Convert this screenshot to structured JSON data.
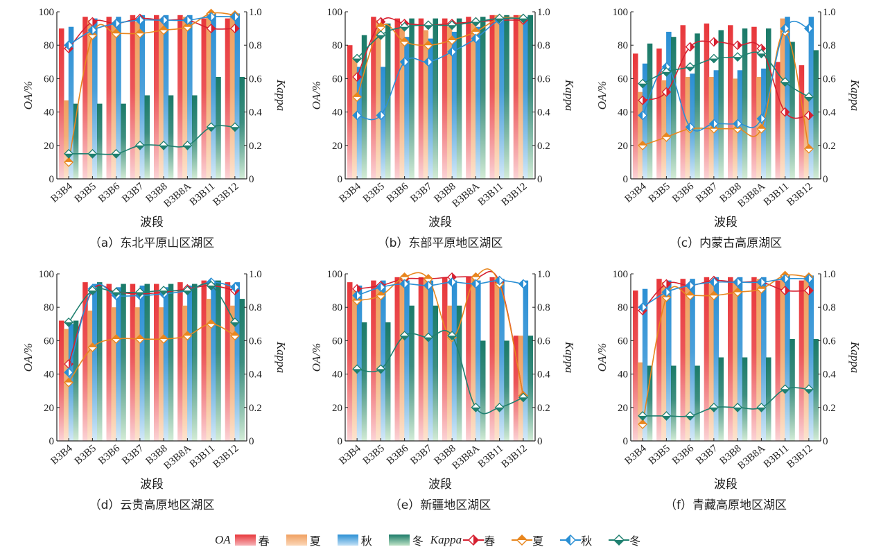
{
  "legend": {
    "oa_label": "OA",
    "kappa_label": "Kappa",
    "seasons": [
      "春",
      "夏",
      "秋",
      "冬"
    ]
  },
  "colors": {
    "spring": "#e8373b",
    "summer": "#f0a060",
    "autumn": "#2a8fd4",
    "winter": "#1a7a68",
    "spring_line": "#d62030",
    "summer_line": "#e8861e",
    "autumn_line": "#2a8fd4",
    "winter_line": "#1f8070"
  },
  "chart_data": [
    {
      "id": "a",
      "title": "（a）东北平原山区湖区",
      "type": "bar+line",
      "categories": [
        "B3B4",
        "B3B5",
        "B3B6",
        "B3B7",
        "B3B8",
        "B3B8A",
        "B3B11",
        "B3B12"
      ],
      "xlabel": "波段",
      "ylabel": "OA/%",
      "y2label": "Kappa",
      "ylim": [
        0,
        100
      ],
      "y2lim": [
        0,
        1.0
      ],
      "yticks": [
        "0",
        "20",
        "40",
        "60",
        "80",
        "100"
      ],
      "y2ticks": [
        "0",
        "0.2",
        "0.4",
        "0.6",
        "0.8",
        "1.0"
      ],
      "oa": {
        "spring": [
          90,
          97,
          97,
          98,
          98,
          98,
          96,
          96
        ],
        "summer": [
          47,
          95,
          93,
          94,
          96,
          97,
          99,
          98
        ],
        "autumn": [
          91,
          96,
          97,
          98,
          98,
          98,
          99,
          99
        ],
        "winter": [
          45,
          45,
          45,
          50,
          50,
          50,
          61,
          61
        ]
      },
      "kappa": {
        "spring": [
          0.78,
          0.94,
          0.93,
          0.96,
          0.95,
          0.95,
          0.9,
          0.9
        ],
        "summer": [
          0.1,
          0.86,
          0.87,
          0.87,
          0.89,
          0.91,
          0.99,
          0.98
        ],
        "autumn": [
          0.8,
          0.89,
          0.93,
          0.95,
          0.95,
          0.95,
          0.97,
          0.97
        ],
        "winter": [
          0.15,
          0.15,
          0.15,
          0.2,
          0.2,
          0.2,
          0.31,
          0.31
        ]
      }
    },
    {
      "id": "b",
      "title": "（b）东部平原地区湖区",
      "type": "bar+line",
      "categories": [
        "B3B4",
        "B3B5",
        "B3B6",
        "B3B7",
        "B3B8",
        "B3B8A",
        "B3B11",
        "B3B12"
      ],
      "xlabel": "波段",
      "ylabel": "OA/%",
      "y2label": "Kappa",
      "ylim": [
        0,
        100
      ],
      "y2lim": [
        0,
        1.0
      ],
      "yticks": [
        "0",
        "20",
        "40",
        "60",
        "80",
        "100"
      ],
      "y2ticks": [
        "0",
        "0.2",
        "0.4",
        "0.6",
        "0.8",
        "1.0"
      ],
      "oa": {
        "spring": [
          80,
          97,
          96,
          96,
          96,
          97,
          98,
          98
        ],
        "summer": [
          73,
          95,
          90,
          89,
          91,
          93,
          98,
          98
        ],
        "autumn": [
          67,
          67,
          85,
          84,
          88,
          91,
          97,
          97
        ],
        "winter": [
          86,
          93,
          96,
          96,
          96,
          97,
          98,
          98
        ]
      },
      "kappa": {
        "spring": [
          0.61,
          0.94,
          0.93,
          0.92,
          0.93,
          0.94,
          0.95,
          0.95
        ],
        "summer": [
          0.49,
          0.91,
          0.82,
          0.8,
          0.83,
          0.88,
          0.96,
          0.96
        ],
        "autumn": [
          0.38,
          0.38,
          0.7,
          0.7,
          0.76,
          0.84,
          0.95,
          0.96
        ],
        "winter": [
          0.72,
          0.86,
          0.91,
          0.92,
          0.92,
          0.94,
          0.96,
          0.96
        ]
      }
    },
    {
      "id": "c",
      "title": "（c）内蒙古高原湖区",
      "type": "bar+line",
      "categories": [
        "B3B4",
        "B3B5",
        "B3B6",
        "B3B7",
        "B3B8",
        "B3B8A",
        "B3B11",
        "B3B12"
      ],
      "xlabel": "波段",
      "ylabel": "OA/%",
      "y2label": "Kappa",
      "ylim": [
        0,
        100
      ],
      "y2lim": [
        0,
        1.0
      ],
      "yticks": [
        "0",
        "20",
        "40",
        "60",
        "80",
        "100"
      ],
      "y2ticks": [
        "0",
        "0.2",
        "0.4",
        "0.6",
        "0.8",
        "1.0"
      ],
      "oa": {
        "spring": [
          75,
          78,
          92,
          93,
          92,
          91,
          70,
          68
        ],
        "summer": [
          52,
          59,
          61,
          61,
          60,
          61,
          96,
          50
        ],
        "autumn": [
          69,
          88,
          63,
          65,
          65,
          66,
          97,
          97
        ],
        "winter": [
          81,
          85,
          87,
          89,
          90,
          90,
          82,
          77
        ]
      },
      "kappa": {
        "spring": [
          0.47,
          0.52,
          0.79,
          0.82,
          0.8,
          0.78,
          0.4,
          0.38
        ],
        "summer": [
          0.2,
          0.25,
          0.3,
          0.3,
          0.3,
          0.3,
          0.88,
          0.18
        ],
        "autumn": [
          0.38,
          0.67,
          0.31,
          0.33,
          0.33,
          0.36,
          0.9,
          0.9
        ],
        "winter": [
          0.57,
          0.64,
          0.67,
          0.72,
          0.73,
          0.75,
          0.58,
          0.49
        ]
      }
    },
    {
      "id": "d",
      "title": "（d）云贵高原地区湖区",
      "type": "bar+line",
      "categories": [
        "B3B4",
        "B3B5",
        "B3B6",
        "B3B7",
        "B3B8",
        "B3B8A",
        "B3B11",
        "B3B12"
      ],
      "xlabel": "波段",
      "ylabel": "OA/%",
      "y2label": "Kappa",
      "ylim": [
        0,
        100
      ],
      "y2lim": [
        0,
        1.0
      ],
      "yticks": [
        "0",
        "20",
        "40",
        "60",
        "80",
        "100"
      ],
      "y2ticks": [
        "0",
        "0.2",
        "0.4",
        "0.6",
        "0.8",
        "1.0"
      ],
      "oa": {
        "spring": [
          72,
          95,
          94,
          94,
          94,
          95,
          96,
          95
        ],
        "summer": [
          67,
          78,
          80,
          80,
          80,
          81,
          85,
          81
        ],
        "autumn": [
          70,
          94,
          92,
          93,
          92,
          93,
          96,
          95
        ],
        "winter": [
          72,
          95,
          94,
          94,
          94,
          94,
          96,
          85
        ]
      },
      "kappa": {
        "spring": [
          0.46,
          0.9,
          0.89,
          0.88,
          0.89,
          0.91,
          0.93,
          0.9
        ],
        "summer": [
          0.35,
          0.56,
          0.61,
          0.61,
          0.61,
          0.63,
          0.7,
          0.63
        ],
        "autumn": [
          0.41,
          0.91,
          0.87,
          0.87,
          0.88,
          0.9,
          0.95,
          0.92
        ],
        "winter": [
          0.71,
          0.9,
          0.89,
          0.89,
          0.9,
          0.9,
          0.93,
          0.71
        ]
      }
    },
    {
      "id": "e",
      "title": "（e）新疆地区湖区",
      "type": "bar+line",
      "categories": [
        "B3B4",
        "B3B5",
        "B3B6",
        "B3B7",
        "B3B8",
        "B3B8A",
        "B3B11",
        "B3B12"
      ],
      "xlabel": "波段",
      "ylabel": "OA/%",
      "y2label": "Kappa",
      "ylim": [
        0,
        100
      ],
      "y2lim": [
        0,
        1.0
      ],
      "yticks": [
        "0",
        "20",
        "40",
        "60",
        "80",
        "100"
      ],
      "y2ticks": [
        "0",
        "0.2",
        "0.4",
        "0.6",
        "0.8",
        "1.0"
      ],
      "oa": {
        "spring": [
          95,
          96,
          98,
          98,
          98,
          98,
          98,
          63
        ],
        "summer": [
          90,
          93,
          98,
          98,
          81,
          98,
          98,
          63
        ],
        "autumn": [
          93,
          96,
          96,
          96,
          96,
          96,
          97,
          96
        ],
        "winter": [
          71,
          71,
          81,
          81,
          81,
          60,
          60,
          63
        ]
      },
      "kappa": {
        "spring": [
          0.91,
          0.93,
          0.97,
          0.97,
          0.98,
          0.98,
          0.95,
          0.27
        ],
        "summer": [
          0.84,
          0.87,
          0.98,
          0.97,
          0.62,
          0.98,
          0.94,
          0.27
        ],
        "autumn": [
          0.87,
          0.92,
          0.94,
          0.93,
          0.95,
          0.94,
          0.96,
          0.94
        ],
        "winter": [
          0.43,
          0.43,
          0.63,
          0.62,
          0.63,
          0.2,
          0.2,
          0.26
        ]
      }
    },
    {
      "id": "f",
      "title": "（f）青藏高原地区湖区",
      "type": "bar+line",
      "categories": [
        "B3B4",
        "B3B5",
        "B3B6",
        "B3B7",
        "B3B8",
        "B3B8A",
        "B3B11",
        "B3B12"
      ],
      "xlabel": "波段",
      "ylabel": "OA/%",
      "y2label": "Kappa",
      "ylim": [
        0,
        100
      ],
      "y2lim": [
        0,
        1.0
      ],
      "yticks": [
        "0",
        "20",
        "40",
        "60",
        "80",
        "100"
      ],
      "y2ticks": [
        "0",
        "0.2",
        "0.4",
        "0.6",
        "0.8",
        "1.0"
      ],
      "oa": {
        "spring": [
          90,
          97,
          97,
          98,
          98,
          98,
          96,
          96
        ],
        "summer": [
          47,
          95,
          93,
          94,
          96,
          97,
          99,
          98
        ],
        "autumn": [
          91,
          96,
          97,
          98,
          98,
          98,
          99,
          99
        ],
        "winter": [
          45,
          45,
          45,
          50,
          50,
          50,
          61,
          61
        ]
      },
      "kappa": {
        "spring": [
          0.78,
          0.94,
          0.93,
          0.96,
          0.95,
          0.95,
          0.9,
          0.9
        ],
        "summer": [
          0.1,
          0.86,
          0.87,
          0.87,
          0.89,
          0.91,
          0.99,
          0.98
        ],
        "autumn": [
          0.8,
          0.89,
          0.93,
          0.95,
          0.95,
          0.95,
          0.97,
          0.97
        ],
        "winter": [
          0.15,
          0.15,
          0.15,
          0.2,
          0.2,
          0.2,
          0.31,
          0.31
        ]
      }
    }
  ]
}
